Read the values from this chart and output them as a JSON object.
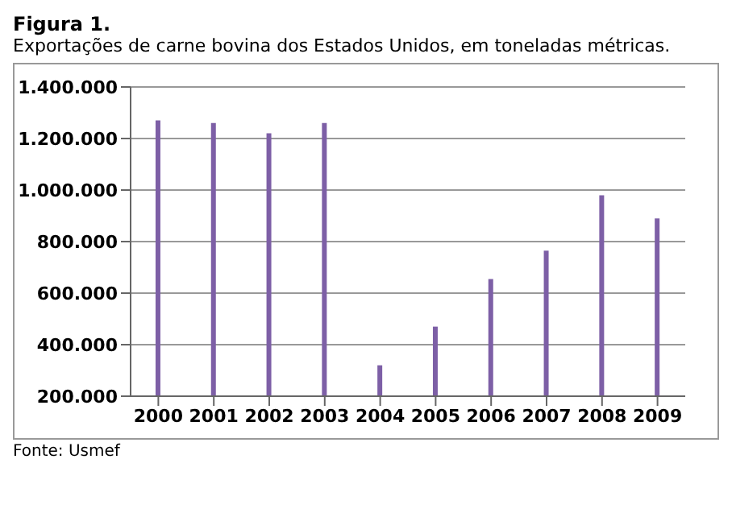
{
  "chart_data": {
    "type": "bar",
    "title": "Figura 1.",
    "subtitle": "Exportações de carne bovina dos Estados Unidos, em toneladas métricas.",
    "categories": [
      "2000",
      "2001",
      "2002",
      "2003",
      "2004",
      "2005",
      "2006",
      "2007",
      "2008",
      "2009"
    ],
    "values": [
      1270000,
      1260000,
      1220000,
      1260000,
      320000,
      470000,
      655000,
      765000,
      980000,
      890000
    ],
    "color": "#7d5fa6",
    "ylim": [
      200000,
      1400000
    ],
    "yticks": [
      {
        "value": 200000,
        "label": "200.000"
      },
      {
        "value": 400000,
        "label": "400.000"
      },
      {
        "value": 600000,
        "label": "600.000"
      },
      {
        "value": 800000,
        "label": "800.000"
      },
      {
        "value": 1000000,
        "label": "1.000.000"
      },
      {
        "value": 1200000,
        "label": "1.200.000"
      },
      {
        "value": 1400000,
        "label": "1.400.000"
      }
    ],
    "grid": "y",
    "annotations": [
      "Fonte: Usmef"
    ]
  }
}
